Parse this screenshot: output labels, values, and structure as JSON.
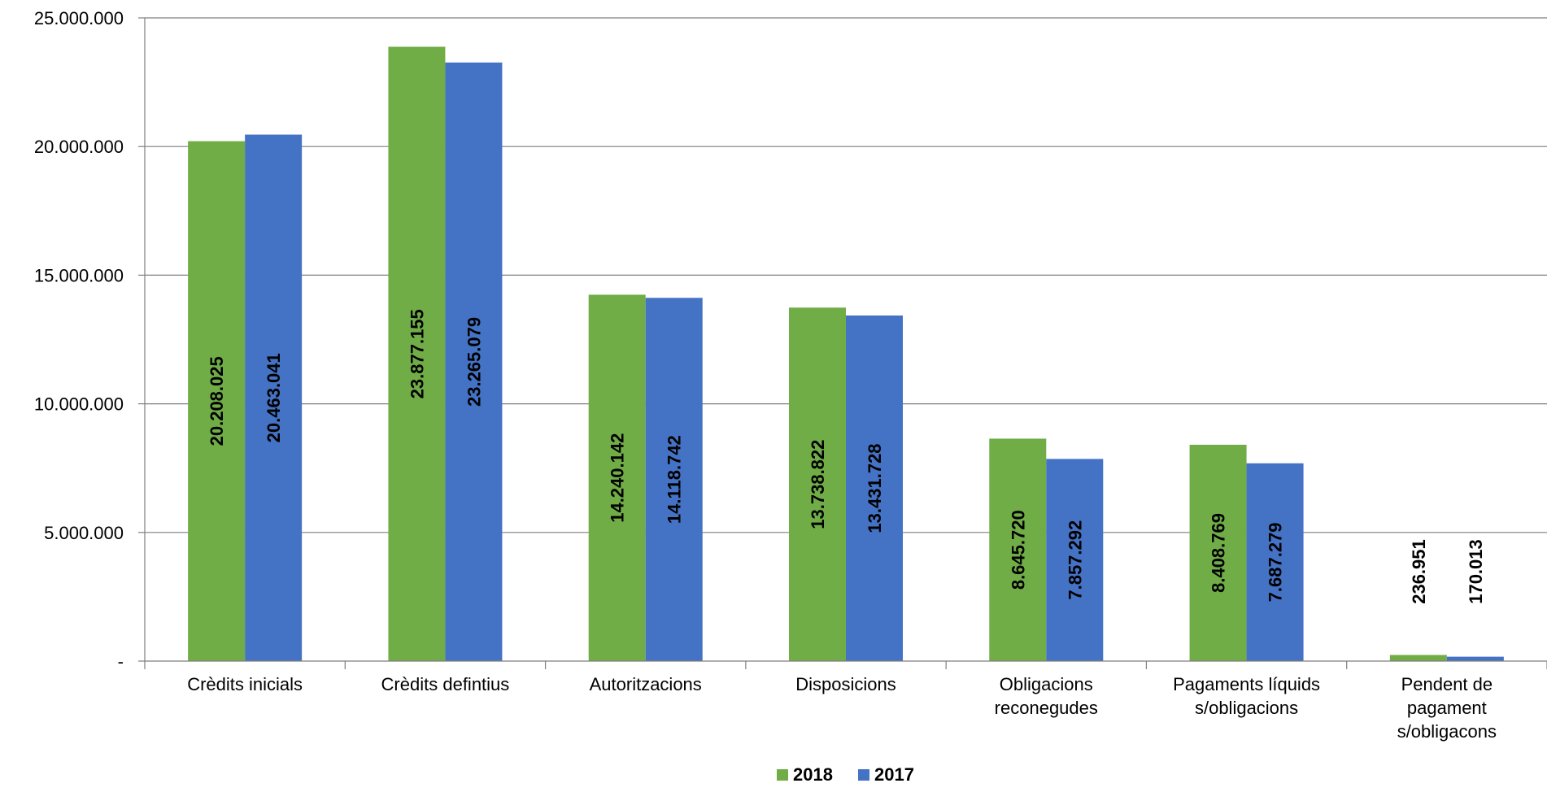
{
  "chart_data": {
    "type": "bar",
    "categories": [
      [
        "Crèdits inicials"
      ],
      [
        "Crèdits defintius"
      ],
      [
        "Autoritzacions"
      ],
      [
        "Disposicions"
      ],
      [
        "Obligacions",
        "reconegudes"
      ],
      [
        "Pagaments líquids",
        "s/obligacions"
      ],
      [
        "Pendent de",
        "pagament",
        "s/obligacons"
      ]
    ],
    "series": [
      {
        "name": "2018",
        "color": "#70AD47",
        "values": [
          20208025,
          23877155,
          14240142,
          13738822,
          8645720,
          8408769,
          236951
        ],
        "labels": [
          "20.208.025",
          "23.877.155",
          "14.240.142",
          "13.738.822",
          "8.645.720",
          "8.408.769",
          "236.951"
        ]
      },
      {
        "name": "2017",
        "color": "#4472C4",
        "values": [
          20463041,
          23265079,
          14118742,
          13431728,
          7857292,
          7687279,
          170013
        ],
        "labels": [
          "20.463.041",
          "23.265.079",
          "14.118.742",
          "13.431.728",
          "7.857.292",
          "7.687.279",
          "170.013"
        ]
      }
    ],
    "ylim": [
      0,
      25000000
    ],
    "yticks": [
      {
        "value": 0,
        "label": "-"
      },
      {
        "value": 5000000,
        "label": "5.000.000"
      },
      {
        "value": 10000000,
        "label": "10.000.000"
      },
      {
        "value": 15000000,
        "label": "15.000.000"
      },
      {
        "value": 20000000,
        "label": "20.000.000"
      },
      {
        "value": 25000000,
        "label": "25.000.000"
      }
    ],
    "grid": true,
    "legend_position": "bottom"
  }
}
